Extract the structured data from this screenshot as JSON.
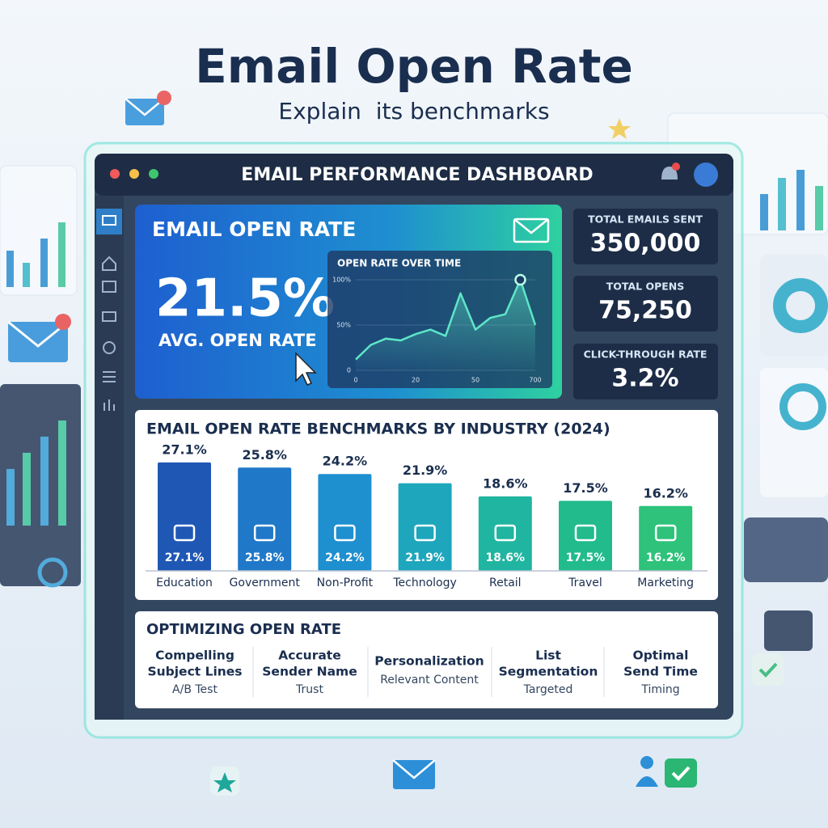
{
  "header": {
    "title": "Email Open Rate",
    "subtitle": "Explain  its benchmarks"
  },
  "dashboard": {
    "title": "EMAIL PERFORMANCE DASHBOARD",
    "hero": {
      "title": "EMAIL OPEN RATE",
      "value": "21.5%",
      "caption": "AVG. OPEN RATE"
    },
    "stats": [
      {
        "label": "TOTAL EMAILS SENT",
        "value": "350,000"
      },
      {
        "label": "TOTAL OPENS",
        "value": "75,250"
      },
      {
        "label": "CLICK-THROUGH RATE",
        "value": "3.2%"
      }
    ],
    "optimizing": {
      "title": "OPTIMIZING OPEN RATE",
      "items": [
        {
          "lines": [
            "Compelling",
            "Subject Lines"
          ],
          "note": "A/B Test"
        },
        {
          "lines": [
            "Accurate",
            "Sender Name"
          ],
          "note": "Trust"
        },
        {
          "lines": [
            "Personalization"
          ],
          "note": "Relevant Content"
        },
        {
          "lines": [
            "List",
            "Segmentation"
          ],
          "note": "Targeted"
        },
        {
          "lines": [
            "Optimal",
            "Send Time"
          ],
          "note": "Timing"
        }
      ]
    }
  },
  "chart_data": [
    {
      "type": "line",
      "title": "OPEN RATE OVER TIME",
      "categories": [
        "0",
        null,
        null,
        null,
        "20",
        null,
        null,
        null,
        "50",
        null,
        null,
        null,
        "700"
      ],
      "values": [
        12,
        28,
        35,
        33,
        40,
        45,
        38,
        85,
        45,
        58,
        62,
        100,
        50
      ],
      "color": "#5ee6c8",
      "ylim": [
        0,
        100
      ],
      "yticks": [
        0,
        {
          "value": 50,
          "label": "50%"
        },
        {
          "value": 100,
          "label": "100%"
        }
      ]
    },
    {
      "type": "bar",
      "title": "EMAIL OPEN RATE BENCHMARKS BY INDUSTRY (2024)",
      "categories": [
        "Education",
        "Government",
        "Non-Profit",
        "Technology",
        "Retail",
        "Travel",
        "Marketing"
      ],
      "values": [
        27.1,
        25.8,
        24.2,
        21.9,
        18.6,
        17.5,
        16.2
      ],
      "value_labels": [
        "27.1%",
        "25.8%",
        "24.2%",
        "21.9%",
        "18.6%",
        "17.5%",
        "16.2%"
      ],
      "colors": [
        "#1f57b5",
        "#1f78c8",
        "#1e8fcf",
        "#1ea6bd",
        "#20b5a0",
        "#22bb8b",
        "#2ec27a"
      ]
    }
  ]
}
